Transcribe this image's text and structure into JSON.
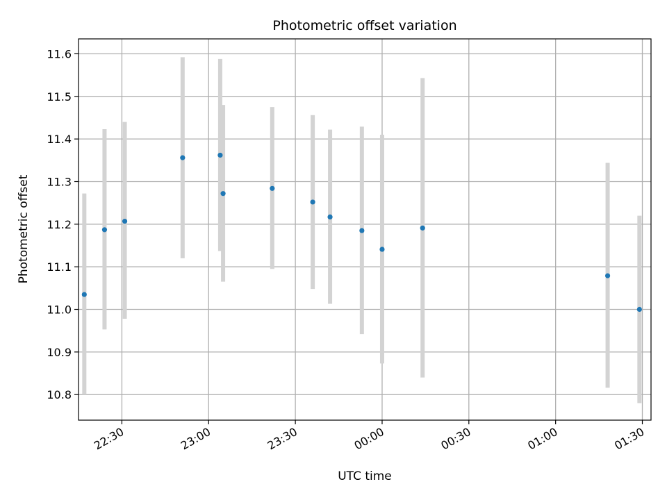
{
  "chart_data": {
    "type": "scatter",
    "title": "Photometric offset variation",
    "xlabel": "UTC time",
    "ylabel": "Photometric offset",
    "xlim": [
      "22:15",
      "01:33"
    ],
    "ylim": [
      10.74,
      11.635
    ],
    "grid": true,
    "x_ticks": [
      "22:30",
      "23:00",
      "23:30",
      "00:00",
      "00:30",
      "01:00",
      "01:30"
    ],
    "y_ticks": [
      "10.8",
      "10.9",
      "11.0",
      "11.1",
      "11.2",
      "11.3",
      "11.4",
      "11.5",
      "11.6"
    ],
    "colors": {
      "point": "#1f77b4",
      "errorbar": "#d3d3d3",
      "grid": "#b0b0b0"
    },
    "series": [
      {
        "points": [
          {
            "x": "22:17",
            "y": 11.035,
            "low": 10.8,
            "high": 11.272
          },
          {
            "x": "22:24",
            "y": 11.187,
            "low": 10.953,
            "high": 11.423
          },
          {
            "x": "22:31",
            "y": 11.207,
            "low": 10.978,
            "high": 11.44
          },
          {
            "x": "22:51",
            "y": 11.356,
            "low": 11.12,
            "high": 11.592
          },
          {
            "x": "23:04",
            "y": 11.362,
            "low": 11.137,
            "high": 11.588
          },
          {
            "x": "23:05",
            "y": 11.272,
            "low": 11.065,
            "high": 11.48
          },
          {
            "x": "23:22",
            "y": 11.284,
            "low": 11.095,
            "high": 11.475
          },
          {
            "x": "23:36",
            "y": 11.252,
            "low": 11.048,
            "high": 11.456
          },
          {
            "x": "23:42",
            "y": 11.217,
            "low": 11.013,
            "high": 11.422
          },
          {
            "x": "23:53",
            "y": 11.185,
            "low": 10.942,
            "high": 11.429
          },
          {
            "x": "00:00",
            "y": 11.141,
            "low": 10.873,
            "high": 11.41
          },
          {
            "x": "00:14",
            "y": 11.191,
            "low": 10.84,
            "high": 11.543
          },
          {
            "x": "01:18",
            "y": 11.079,
            "low": 10.816,
            "high": 11.344
          },
          {
            "x": "01:29",
            "y": 11.0,
            "low": 10.78,
            "high": 11.22
          }
        ]
      }
    ]
  }
}
